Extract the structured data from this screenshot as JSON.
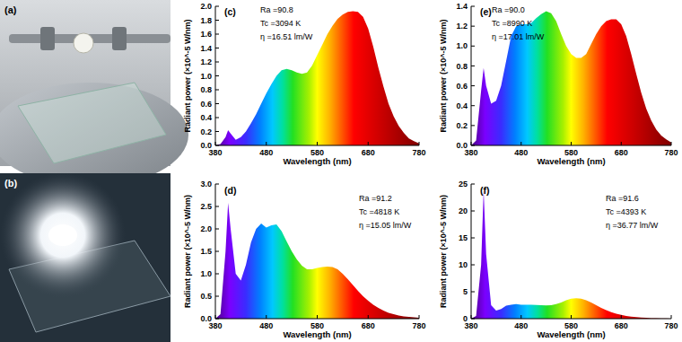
{
  "photos": [
    {
      "label": "(a)"
    },
    {
      "label": "(b)"
    }
  ],
  "chart_data": [
    {
      "type": "area",
      "panel": "(c)",
      "x_label": "Wavelength (nm)",
      "y_label": "Radiant power (×10^-5 W/nm)",
      "annotations": [
        "Ra =90.8",
        "Tc =3094 K",
        "η =16.51 lm/W"
      ],
      "x": [
        380,
        390,
        400,
        405,
        410,
        420,
        430,
        440,
        450,
        460,
        470,
        480,
        490,
        500,
        510,
        520,
        530,
        540,
        550,
        560,
        570,
        580,
        590,
        600,
        610,
        620,
        630,
        640,
        650,
        660,
        670,
        680,
        690,
        700,
        710,
        720,
        730,
        740,
        750,
        760,
        770,
        780
      ],
      "xlim": [
        380,
        780
      ],
      "xticks": [
        380,
        480,
        580,
        680,
        780
      ],
      "ylim": [
        0,
        2
      ],
      "yticks": [
        {
          "value": 0,
          "label": "0.0"
        },
        0.2,
        0.4,
        0.6,
        0.8,
        {
          "value": 1,
          "label": "1.0"
        },
        1.2,
        1.4,
        1.6,
        1.8,
        {
          "value": 2,
          "label": "2.0"
        }
      ],
      "series": [
        {
          "values": [
            0,
            0.02,
            0.12,
            0.22,
            0.17,
            0.08,
            0.12,
            0.2,
            0.32,
            0.45,
            0.6,
            0.75,
            0.88,
            1.0,
            1.08,
            1.1,
            1.08,
            1.05,
            1.03,
            1.05,
            1.15,
            1.3,
            1.45,
            1.6,
            1.72,
            1.82,
            1.88,
            1.92,
            1.93,
            1.92,
            1.85,
            1.68,
            1.42,
            1.12,
            0.85,
            0.6,
            0.42,
            0.28,
            0.18,
            0.1,
            0.06,
            0.03
          ]
        }
      ]
    },
    {
      "type": "area",
      "panel": "(d)",
      "x_label": "Wavelength (nm)",
      "y_label": "Radiant power (×10^-5 W/nm)",
      "annotations": [
        "Ra =91.2",
        "Tc =4818 K",
        "η =15.05 lm/W"
      ],
      "x": [
        380,
        390,
        400,
        405,
        410,
        420,
        430,
        440,
        450,
        460,
        470,
        480,
        490,
        500,
        510,
        520,
        530,
        540,
        550,
        560,
        570,
        580,
        590,
        600,
        610,
        620,
        630,
        640,
        650,
        660,
        670,
        680,
        690,
        700,
        710,
        720,
        730,
        740,
        750,
        760,
        770,
        780
      ],
      "xlim": [
        380,
        780
      ],
      "xticks": [
        380,
        480,
        580,
        680,
        780
      ],
      "ylim": [
        0,
        3
      ],
      "yticks": [
        {
          "value": 0,
          "label": "0.0"
        },
        0.5,
        {
          "value": 1,
          "label": "1.0"
        },
        1.5,
        {
          "value": 2,
          "label": "2.0"
        },
        2.5,
        {
          "value": 3,
          "label": "3.0"
        }
      ],
      "series": [
        {
          "values": [
            0,
            0.1,
            1.5,
            2.58,
            2.0,
            1.0,
            0.85,
            1.2,
            1.7,
            2.0,
            2.12,
            2.03,
            2.08,
            2.1,
            1.95,
            1.72,
            1.5,
            1.32,
            1.18,
            1.1,
            1.1,
            1.13,
            1.15,
            1.16,
            1.15,
            1.1,
            1.0,
            0.88,
            0.75,
            0.62,
            0.5,
            0.4,
            0.31,
            0.24,
            0.18,
            0.13,
            0.1,
            0.07,
            0.05,
            0.04,
            0.03,
            0.02
          ]
        }
      ]
    },
    {
      "type": "area",
      "panel": "(e)",
      "x_label": "Wavelength (nm)",
      "y_label": "Radiant power (×10^-5 W/nm)",
      "annotations": [
        "Ra =90.0",
        "Tc =8990 K",
        "η =17.01 lm/W"
      ],
      "x": [
        380,
        390,
        400,
        405,
        410,
        420,
        430,
        440,
        450,
        460,
        470,
        480,
        490,
        500,
        510,
        520,
        530,
        540,
        550,
        560,
        570,
        580,
        590,
        600,
        610,
        620,
        630,
        640,
        650,
        660,
        670,
        680,
        690,
        700,
        710,
        720,
        730,
        740,
        750,
        760,
        770,
        780
      ],
      "xlim": [
        380,
        780
      ],
      "xticks": [
        380,
        480,
        580,
        680,
        780
      ],
      "ylim": [
        0,
        1.4
      ],
      "yticks": [
        {
          "value": 0,
          "label": "0.0"
        },
        0.2,
        0.4,
        0.6,
        0.8,
        {
          "value": 1,
          "label": "1.0"
        },
        1.2,
        1.4
      ],
      "series": [
        {
          "values": [
            0,
            0.05,
            0.55,
            0.78,
            0.6,
            0.42,
            0.45,
            0.6,
            0.85,
            1.1,
            1.2,
            1.22,
            1.22,
            1.23,
            1.28,
            1.32,
            1.35,
            1.33,
            1.25,
            1.12,
            1.0,
            0.92,
            0.88,
            0.88,
            0.92,
            1.02,
            1.12,
            1.2,
            1.25,
            1.27,
            1.27,
            1.22,
            1.1,
            0.92,
            0.72,
            0.53,
            0.37,
            0.25,
            0.16,
            0.1,
            0.06,
            0.03
          ]
        }
      ]
    },
    {
      "type": "area",
      "panel": "(f)",
      "x_label": "Wavelength (nm)",
      "y_label": "Radiant power (×10^-5 W/nm)",
      "annotations": [
        "Ra =91.6",
        "Tc =4393 K",
        "η =36.77 lm/W"
      ],
      "x": [
        380,
        390,
        400,
        405,
        410,
        420,
        430,
        440,
        450,
        460,
        470,
        480,
        490,
        500,
        510,
        520,
        530,
        540,
        550,
        560,
        570,
        580,
        590,
        600,
        610,
        620,
        630,
        640,
        650,
        660,
        670,
        680,
        690,
        700,
        710,
        720,
        730,
        740,
        750,
        760,
        770,
        780
      ],
      "xlim": [
        380,
        780
      ],
      "xticks": [
        380,
        480,
        580,
        680,
        780
      ],
      "ylim": [
        0,
        25
      ],
      "yticks": [
        0,
        5,
        10,
        15,
        20,
        25
      ],
      "series": [
        {
          "values": [
            0,
            0.5,
            10,
            23.8,
            12,
            2.5,
            1.5,
            1.8,
            2.4,
            2.6,
            2.7,
            2.6,
            2.6,
            2.6,
            2.55,
            2.5,
            2.45,
            2.5,
            2.7,
            3.0,
            3.4,
            3.7,
            3.8,
            3.7,
            3.4,
            3.0,
            2.5,
            2.0,
            1.6,
            1.2,
            0.9,
            0.7,
            0.5,
            0.38,
            0.28,
            0.2,
            0.15,
            0.1,
            0.07,
            0.05,
            0.03,
            0.02
          ]
        }
      ]
    }
  ]
}
